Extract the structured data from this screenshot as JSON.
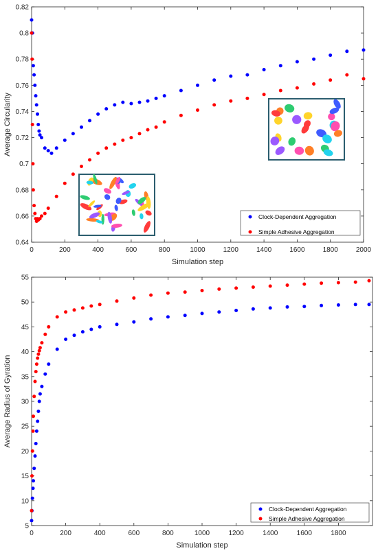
{
  "chart_data": [
    {
      "type": "scatter",
      "xlabel": "Simulation step",
      "ylabel": "Average Circularity",
      "xlim": [
        0,
        2000
      ],
      "ylim": [
        0.64,
        0.82
      ],
      "xticks": [
        "0",
        "200",
        "400",
        "600",
        "800",
        "1000",
        "1200",
        "1400",
        "1600",
        "1800",
        "2000"
      ],
      "yticks": [
        "0.64",
        "0.66",
        "0.68",
        "0.7",
        "0.72",
        "0.74",
        "0.76",
        "0.78",
        "0.8",
        "0.82"
      ],
      "legend_position": "bottom-right",
      "grid": false,
      "series": [
        {
          "name": "Clock-Dependent Aggregation",
          "color": "#0000ff",
          "x": [
            0,
            5,
            10,
            15,
            20,
            25,
            30,
            35,
            40,
            45,
            50,
            60,
            80,
            100,
            120,
            150,
            200,
            250,
            300,
            350,
            400,
            450,
            500,
            550,
            600,
            650,
            700,
            750,
            800,
            900,
            1000,
            1100,
            1200,
            1300,
            1400,
            1500,
            1600,
            1700,
            1800,
            1900,
            2000
          ],
          "y": [
            0.81,
            0.8,
            0.775,
            0.768,
            0.76,
            0.752,
            0.745,
            0.738,
            0.73,
            0.725,
            0.722,
            0.72,
            0.712,
            0.71,
            0.708,
            0.712,
            0.718,
            0.723,
            0.728,
            0.733,
            0.738,
            0.742,
            0.745,
            0.747,
            0.746,
            0.747,
            0.748,
            0.75,
            0.752,
            0.756,
            0.76,
            0.764,
            0.767,
            0.768,
            0.772,
            0.775,
            0.778,
            0.78,
            0.783,
            0.786,
            0.787
          ]
        },
        {
          "name": "Simple Adhesive Aggregation",
          "color": "#ff0000",
          "x": [
            0,
            3,
            5,
            8,
            10,
            15,
            20,
            25,
            30,
            35,
            40,
            50,
            60,
            80,
            100,
            150,
            200,
            250,
            300,
            350,
            400,
            450,
            500,
            550,
            600,
            650,
            700,
            750,
            800,
            900,
            1000,
            1100,
            1200,
            1300,
            1400,
            1500,
            1600,
            1700,
            1800,
            1900,
            2000
          ],
          "y": [
            0.8,
            0.78,
            0.73,
            0.7,
            0.68,
            0.668,
            0.662,
            0.658,
            0.656,
            0.658,
            0.657,
            0.658,
            0.66,
            0.662,
            0.666,
            0.675,
            0.685,
            0.692,
            0.698,
            0.703,
            0.708,
            0.712,
            0.715,
            0.718,
            0.72,
            0.723,
            0.726,
            0.728,
            0.732,
            0.737,
            0.741,
            0.745,
            0.748,
            0.75,
            0.753,
            0.756,
            0.758,
            0.761,
            0.764,
            0.768,
            0.765
          ]
        }
      ]
    },
    {
      "type": "scatter",
      "xlabel": "Simulation step",
      "ylabel": "Average Radius of Gyration",
      "xlim": [
        0,
        2000
      ],
      "ylim": [
        5,
        55
      ],
      "xticks": [
        "0",
        "200",
        "400",
        "600",
        "800",
        "1000",
        "1200",
        "1400",
        "1600",
        "1800"
      ],
      "yticks": [
        "5",
        "10",
        "15",
        "20",
        "25",
        "30",
        "35",
        "40",
        "45",
        "50",
        "55"
      ],
      "legend_position": "bottom-right",
      "grid": false,
      "series": [
        {
          "name": "Clock-Dependent Aggregation",
          "color": "#0000ff",
          "x": [
            0,
            2,
            5,
            8,
            10,
            15,
            20,
            25,
            30,
            35,
            40,
            45,
            50,
            60,
            80,
            100,
            150,
            200,
            250,
            300,
            350,
            400,
            500,
            600,
            700,
            800,
            900,
            1000,
            1100,
            1200,
            1300,
            1400,
            1500,
            1600,
            1700,
            1800,
            1900,
            1980
          ],
          "y": [
            6,
            8,
            10.5,
            12.5,
            14,
            16.5,
            19,
            21.5,
            24,
            26,
            28,
            30,
            31.5,
            33,
            35.5,
            37.5,
            40.5,
            42.5,
            43.3,
            44,
            44.5,
            45,
            45.5,
            46,
            46.6,
            47,
            47.3,
            47.7,
            48,
            48.3,
            48.6,
            48.8,
            49,
            49.1,
            49.3,
            49.4,
            49.5,
            49.5
          ]
        },
        {
          "name": "Simple Adhesive Aggregation",
          "color": "#ff0000",
          "x": [
            0,
            2,
            5,
            8,
            10,
            15,
            20,
            25,
            30,
            35,
            40,
            45,
            50,
            60,
            80,
            100,
            150,
            200,
            250,
            300,
            350,
            400,
            500,
            600,
            700,
            800,
            900,
            1000,
            1100,
            1200,
            1300,
            1400,
            1500,
            1600,
            1700,
            1800,
            1900,
            1980
          ],
          "y": [
            8,
            15,
            20,
            24,
            27,
            31,
            34,
            36,
            37.5,
            38.7,
            39.5,
            40.2,
            40.8,
            41.8,
            43.5,
            45,
            47,
            48,
            48.4,
            48.8,
            49.2,
            49.5,
            50.2,
            50.8,
            51.4,
            51.8,
            52,
            52.3,
            52.6,
            52.8,
            53,
            53.2,
            53.4,
            53.6,
            53.8,
            53.9,
            54,
            54.3
          ]
        }
      ]
    }
  ],
  "insets": [
    {
      "colors": [
        "#3f5bff",
        "#ff4fb0",
        "#2ecc71",
        "#ffd42a",
        "#ff7f27",
        "#9b59ff",
        "#22d3ee",
        "#ff3b3b"
      ]
    }
  ]
}
